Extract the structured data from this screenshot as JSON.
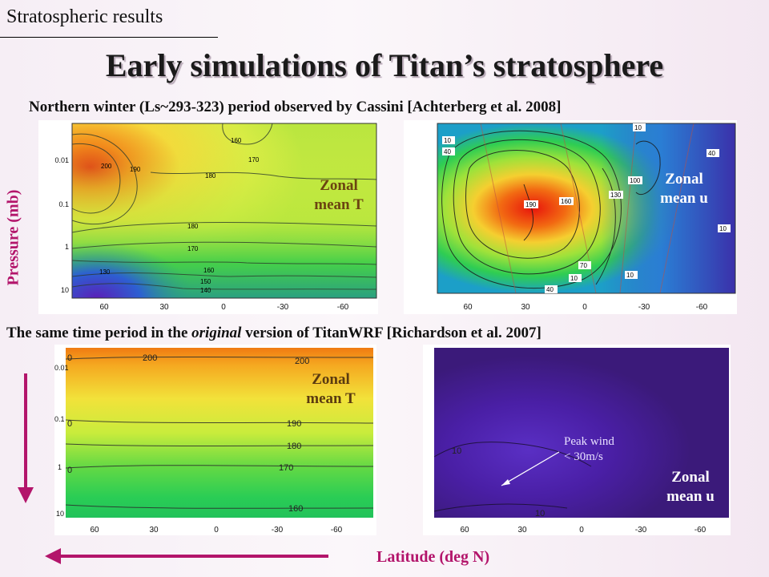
{
  "header": {
    "section": "Stratospheric results",
    "title": "Early simulations of Titan’s stratosphere"
  },
  "captions": {
    "observed_prefix": "Northern winter (Ls~293-323) period observed by Cassini [Achterberg et al. 2008]",
    "model_prefix": "The same time period in the ",
    "model_italic": "original",
    "model_suffix": " version of TitanWRF [Richardson et al. 2007]"
  },
  "axes": {
    "ylabel": "Pressure (mb)",
    "xlabel": "Latitude (deg N)",
    "pressure_ticks": [
      "0.01",
      "0.1",
      "1",
      "10"
    ],
    "latitude_ticks": [
      "60",
      "30",
      "0",
      "-30",
      "-60"
    ]
  },
  "panels": {
    "obs_T": {
      "label_line1": "Zonal",
      "label_line2": "mean T",
      "contours": [
        "200",
        "190",
        "160",
        "170",
        "180",
        "180",
        "170",
        "160",
        "150",
        "140",
        "130"
      ]
    },
    "obs_u": {
      "label_line1": "Zonal",
      "label_line2": "mean u",
      "contours": [
        "10",
        "10",
        "40",
        "190",
        "160",
        "130",
        "100",
        "40",
        "70",
        "10",
        "10",
        "40",
        "10"
      ]
    },
    "model_T": {
      "label_line1": "Zonal",
      "label_line2": "mean T",
      "contours": [
        "200",
        "200",
        "190",
        "180",
        "170",
        "160",
        "0",
        "0",
        "0"
      ]
    },
    "model_u": {
      "label_line1": "Zonal",
      "label_line2": "mean u",
      "contours": [
        "10",
        "10"
      ],
      "annotation_line1": "Peak wind",
      "annotation_line2": "< 30m/s"
    }
  },
  "colors": {
    "accent": "#b3156b",
    "purple": "#4a1b8e"
  }
}
